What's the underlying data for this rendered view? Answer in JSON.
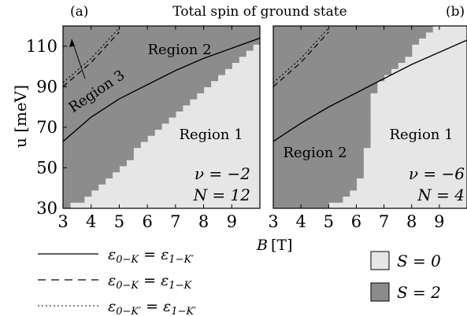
{
  "figure": {
    "title": "Total spin of ground state",
    "xlabel_var": "B",
    "xlabel_unit": "[T]",
    "ylabel": "u [meV]",
    "legend_lines": [
      {
        "lhs": "ε",
        "lhs_sub": "0−K",
        "rhs": "ε",
        "rhs_sub": "1−K′",
        "style": "solid"
      },
      {
        "lhs": "ε",
        "lhs_sub": "0−K",
        "rhs": "ε",
        "rhs_sub": "1−K",
        "style": "dashed"
      },
      {
        "lhs": "ε",
        "lhs_sub": "0−K′",
        "rhs": "ε",
        "rhs_sub": "1−K′",
        "style": "dotted"
      }
    ],
    "legend_fill": [
      {
        "label": "S = 0",
        "color": "#e6e6e6"
      },
      {
        "label": "S = 2",
        "color": "#8c8c8c"
      }
    ]
  },
  "chart_data": [
    {
      "type": "heatmap",
      "panel_label": "(a)",
      "xlim": [
        3,
        10
      ],
      "ylim": [
        30,
        120
      ],
      "xticks": [
        3,
        4,
        5,
        6,
        7,
        8,
        9
      ],
      "yticks": [
        30,
        50,
        70,
        90,
        110
      ],
      "colors": {
        "S0": "#e6e6e6",
        "S2": "#8c8c8c"
      },
      "boundary_S2_lower_u": [
        {
          "B": 3.0,
          "u": 30
        },
        {
          "B": 3.5,
          "u": 33
        },
        {
          "B": 4.0,
          "u": 37
        },
        {
          "B": 4.5,
          "u": 43
        },
        {
          "B": 5.0,
          "u": 50
        },
        {
          "B": 5.5,
          "u": 57
        },
        {
          "B": 6.0,
          "u": 63
        },
        {
          "B": 6.5,
          "u": 70
        },
        {
          "B": 7.0,
          "u": 77
        },
        {
          "B": 7.5,
          "u": 83
        },
        {
          "B": 8.0,
          "u": 89
        },
        {
          "B": 8.5,
          "u": 95
        },
        {
          "B": 9.0,
          "u": 101
        },
        {
          "B": 9.5,
          "u": 107
        },
        {
          "B": 10.0,
          "u": 112
        }
      ],
      "solid_line": [
        [
          3,
          63
        ],
        [
          4,
          75
        ],
        [
          5,
          84
        ],
        [
          6,
          91
        ],
        [
          7,
          98
        ],
        [
          8,
          104
        ],
        [
          9,
          109
        ],
        [
          10,
          114
        ]
      ],
      "dashed_line": [
        [
          3,
          90
        ],
        [
          4,
          102
        ],
        [
          5,
          117
        ]
      ],
      "dotted_line": [
        [
          3,
          92
        ],
        [
          4,
          104
        ],
        [
          5,
          119
        ]
      ],
      "region_labels": [
        "Region 1",
        "Region 2",
        "Region 3"
      ],
      "nu": "ν = −2",
      "N": "N = 12"
    },
    {
      "type": "heatmap",
      "panel_label": "(b)",
      "xlim": [
        3,
        10
      ],
      "ylim": [
        30,
        120
      ],
      "xticks": [
        3,
        4,
        5,
        6,
        7,
        8,
        9
      ],
      "colors": {
        "S0": "#e6e6e6",
        "S2": "#8c8c8c"
      },
      "boundary_S2_right_B": [
        {
          "u": 30,
          "B": 4.9
        },
        {
          "u": 40,
          "B": 6.0
        },
        {
          "u": 55,
          "B": 6.3
        },
        {
          "u": 70,
          "B": 6.5
        },
        {
          "u": 85,
          "B": 6.5
        },
        {
          "u": 95,
          "B": 7.0
        },
        {
          "u": 105,
          "B": 7.8
        },
        {
          "u": 112,
          "B": 8.3
        },
        {
          "u": 120,
          "B": 8.8
        }
      ],
      "solid_line": [
        [
          3,
          63
        ],
        [
          4,
          72
        ],
        [
          5,
          80
        ],
        [
          6,
          87
        ],
        [
          7,
          94
        ],
        [
          8,
          101
        ],
        [
          9,
          107
        ],
        [
          10,
          113
        ]
      ],
      "dashed_line": [
        [
          3,
          90
        ],
        [
          4,
          102
        ],
        [
          5,
          117
        ]
      ],
      "dotted_line": [
        [
          3,
          92
        ],
        [
          4,
          104
        ],
        [
          5,
          119
        ]
      ],
      "region_labels": [
        "Region 1",
        "Region 2"
      ],
      "nu": "ν = −6",
      "N": "N = 4"
    }
  ]
}
